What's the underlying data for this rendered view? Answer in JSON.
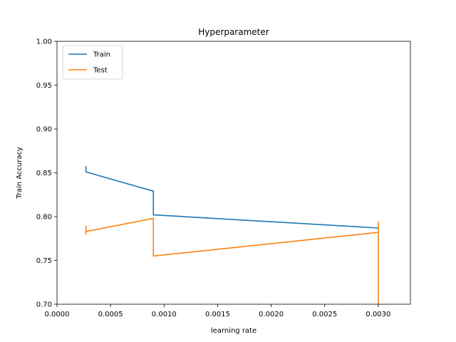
{
  "chart_data": {
    "type": "line",
    "title": "Hyperparameter",
    "xlabel": "learning rate",
    "ylabel": "Train Accuracy",
    "xlim": [
      0,
      0.0033
    ],
    "ylim": [
      0.7,
      1.0
    ],
    "xticks": [
      0,
      0.0005,
      0.001,
      0.0015,
      0.002,
      0.0025,
      0.003
    ],
    "xtick_labels": [
      "0.0000",
      "0.0005",
      "0.0010",
      "0.0015",
      "0.0020",
      "0.0025",
      "0.0030"
    ],
    "yticks": [
      0.7,
      0.75,
      0.8,
      0.85,
      0.9,
      0.95,
      1.0
    ],
    "ytick_labels": [
      "0.70",
      "0.75",
      "0.80",
      "0.85",
      "0.90",
      "0.95",
      "1.00"
    ],
    "grid": false,
    "legend_position": "top-left",
    "series": [
      {
        "name": "Train",
        "color": "#1f77b4",
        "x": [
          0.00027,
          0.00027,
          0.0009,
          0.0009,
          0.003,
          0.003
        ],
        "y": [
          0.857,
          0.851,
          0.829,
          0.802,
          0.787,
          0.786
        ]
      },
      {
        "name": "Test",
        "color": "#ff7f0e",
        "x": [
          0.00027,
          0.00027,
          0.00027,
          0.0009,
          0.0009,
          0.0009,
          0.0009,
          0.003,
          0.003,
          0.003
        ],
        "y": [
          0.789,
          0.78,
          0.783,
          0.798,
          0.787,
          0.797,
          0.755,
          0.782,
          0.794,
          0.7
        ]
      }
    ]
  }
}
